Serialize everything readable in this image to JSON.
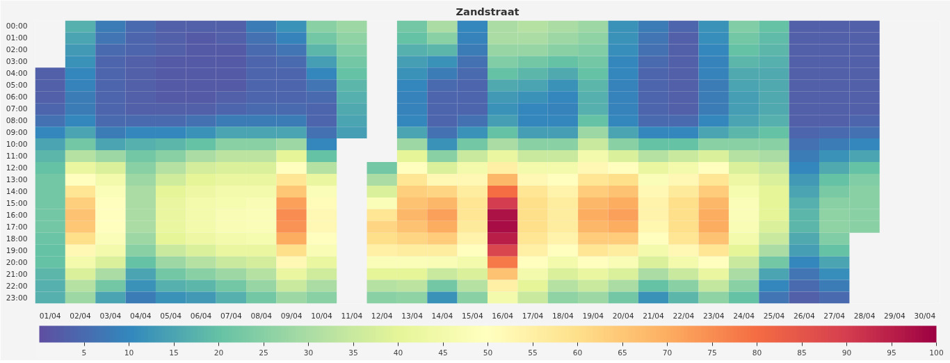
{
  "chart_data": {
    "type": "heatmap",
    "title": "Zandstraat",
    "categories": [
      "01/04",
      "02/04",
      "03/04",
      "04/04",
      "05/04",
      "06/04",
      "07/04",
      "08/04",
      "09/04",
      "10/04",
      "11/04",
      "12/04",
      "13/04",
      "14/04",
      "15/04",
      "16/04",
      "17/04",
      "18/04",
      "19/04",
      "20/04",
      "21/04",
      "22/04",
      "23/04",
      "24/04",
      "25/04",
      "26/04",
      "27/04",
      "28/04",
      "29/04",
      "30/04"
    ],
    "y_categories": [
      "00:00",
      "01:00",
      "02:00",
      "03:00",
      "04:00",
      "05:00",
      "06:00",
      "07:00",
      "08:00",
      "09:00",
      "10:00",
      "11:00",
      "12:00",
      "13:00",
      "14:00",
      "15:00",
      "16:00",
      "17:00",
      "18:00",
      "19:00",
      "20:00",
      "21:00",
      "22:00",
      "23:00"
    ],
    "cells": [
      [
        null,
        17,
        8,
        5,
        3,
        3,
        3,
        8,
        12,
        25,
        28,
        null,
        22,
        30,
        10,
        30,
        32,
        30,
        28,
        12,
        8,
        4,
        12,
        24,
        20,
        3,
        3,
        3,
        null,
        null
      ],
      [
        null,
        15,
        7,
        4,
        3,
        2,
        3,
        6,
        9,
        22,
        26,
        null,
        20,
        25,
        9,
        30,
        30,
        28,
        26,
        12,
        7,
        3,
        11,
        22,
        19,
        3,
        3,
        3,
        null,
        null
      ],
      [
        null,
        13,
        5,
        4,
        3,
        2,
        2,
        5,
        7,
        18,
        24,
        null,
        17,
        18,
        8,
        27,
        27,
        25,
        24,
        11,
        6,
        3,
        10,
        20,
        18,
        3,
        3,
        3,
        null,
        null
      ],
      [
        null,
        12,
        4,
        3,
        2,
        2,
        2,
        4,
        5,
        14,
        22,
        null,
        14,
        12,
        6,
        24,
        22,
        20,
        22,
        10,
        5,
        3,
        9,
        18,
        17,
        3,
        3,
        3,
        null,
        null
      ],
      [
        3,
        10,
        4,
        3,
        2,
        2,
        2,
        4,
        4,
        10,
        20,
        null,
        12,
        8,
        5,
        20,
        18,
        16,
        20,
        10,
        4,
        3,
        9,
        16,
        16,
        3,
        3,
        3,
        null,
        null
      ],
      [
        3,
        9,
        4,
        3,
        2,
        2,
        2,
        4,
        4,
        7,
        18,
        null,
        10,
        5,
        4,
        16,
        15,
        12,
        18,
        9,
        4,
        3,
        8,
        15,
        16,
        3,
        3,
        3,
        null,
        null
      ],
      [
        3,
        8,
        4,
        3,
        2,
        2,
        3,
        4,
        4,
        5,
        17,
        null,
        9,
        4,
        4,
        13,
        12,
        10,
        17,
        9,
        4,
        3,
        8,
        14,
        16,
        3,
        3,
        3,
        null,
        null
      ],
      [
        4,
        8,
        4,
        3,
        3,
        3,
        4,
        5,
        5,
        4,
        16,
        null,
        9,
        4,
        4,
        12,
        10,
        9,
        17,
        9,
        4,
        3,
        8,
        14,
        16,
        3,
        3,
        3,
        null,
        null
      ],
      [
        6,
        10,
        5,
        5,
        5,
        6,
        8,
        8,
        8,
        4,
        15,
        null,
        10,
        4,
        6,
        14,
        10,
        10,
        20,
        10,
        5,
        5,
        10,
        15,
        17,
        3,
        3,
        4,
        null,
        null
      ],
      [
        10,
        15,
        8,
        10,
        10,
        12,
        15,
        15,
        15,
        6,
        14,
        null,
        15,
        6,
        12,
        20,
        14,
        14,
        28,
        15,
        10,
        10,
        15,
        18,
        20,
        4,
        5,
        6,
        null,
        null
      ],
      [
        15,
        22,
        15,
        17,
        18,
        20,
        25,
        25,
        28,
        10,
        null,
        null,
        28,
        12,
        22,
        30,
        25,
        25,
        35,
        25,
        20,
        20,
        25,
        25,
        25,
        6,
        8,
        10,
        null,
        null
      ],
      [
        18,
        32,
        28,
        22,
        25,
        30,
        33,
        33,
        40,
        20,
        null,
        null,
        40,
        25,
        35,
        42,
        35,
        35,
        45,
        38,
        32,
        35,
        38,
        32,
        30,
        8,
        12,
        15,
        null,
        null
      ],
      [
        20,
        42,
        38,
        25,
        32,
        37,
        38,
        38,
        50,
        32,
        null,
        22,
        50,
        38,
        45,
        55,
        45,
        45,
        52,
        50,
        42,
        45,
        50,
        38,
        35,
        10,
        16,
        20,
        null,
        null
      ],
      [
        22,
        50,
        45,
        28,
        36,
        40,
        42,
        42,
        58,
        42,
        null,
        30,
        58,
        52,
        52,
        68,
        52,
        50,
        58,
        60,
        48,
        52,
        58,
        43,
        38,
        13,
        20,
        24,
        null,
        null
      ],
      [
        22,
        58,
        48,
        30,
        40,
        43,
        45,
        45,
        65,
        48,
        null,
        38,
        63,
        62,
        56,
        80,
        58,
        54,
        64,
        66,
        52,
        57,
        64,
        46,
        40,
        15,
        23,
        25,
        null,
        null
      ],
      [
        22,
        63,
        50,
        30,
        42,
        45,
        46,
        47,
        72,
        51,
        null,
        48,
        66,
        68,
        58,
        90,
        60,
        56,
        68,
        70,
        54,
        60,
        68,
        48,
        40,
        17,
        25,
        25,
        null,
        null
      ],
      [
        22,
        66,
        50,
        30,
        42,
        45,
        47,
        48,
        75,
        52,
        null,
        58,
        68,
        72,
        58,
        97,
        60,
        56,
        70,
        72,
        54,
        60,
        70,
        48,
        40,
        18,
        26,
        25,
        null,
        null
      ],
      [
        22,
        65,
        50,
        30,
        42,
        45,
        47,
        48,
        74,
        52,
        null,
        62,
        66,
        70,
        57,
        98,
        60,
        56,
        68,
        70,
        53,
        60,
        70,
        47,
        38,
        18,
        26,
        25,
        null,
        null
      ],
      [
        21,
        60,
        48,
        28,
        40,
        43,
        45,
        46,
        70,
        50,
        null,
        60,
        62,
        64,
        54,
        95,
        58,
        54,
        64,
        64,
        50,
        58,
        66,
        45,
        35,
        16,
        24,
        null,
        null,
        null
      ],
      [
        20,
        52,
        45,
        25,
        35,
        38,
        42,
        42,
        60,
        47,
        null,
        55,
        56,
        56,
        50,
        88,
        55,
        50,
        58,
        56,
        45,
        52,
        58,
        40,
        30,
        14,
        20,
        null,
        null,
        null
      ],
      [
        20,
        45,
        38,
        20,
        28,
        32,
        35,
        37,
        52,
        42,
        null,
        48,
        48,
        47,
        45,
        78,
        50,
        45,
        50,
        47,
        38,
        45,
        50,
        35,
        22,
        10,
        15,
        null,
        null,
        null
      ],
      [
        18,
        38,
        30,
        15,
        22,
        25,
        28,
        32,
        42,
        36,
        null,
        40,
        40,
        35,
        38,
        66,
        45,
        38,
        42,
        38,
        30,
        35,
        42,
        30,
        15,
        7,
        11,
        null,
        null,
        null
      ],
      [
        17,
        32,
        22,
        12,
        17,
        18,
        22,
        27,
        35,
        30,
        null,
        32,
        33,
        22,
        32,
        55,
        40,
        32,
        35,
        30,
        20,
        25,
        34,
        25,
        10,
        5,
        8,
        null,
        null,
        null
      ],
      [
        17,
        28,
        15,
        8,
        12,
        13,
        17,
        22,
        28,
        25,
        null,
        25,
        26,
        12,
        25,
        45,
        35,
        26,
        28,
        22,
        12,
        18,
        26,
        20,
        7,
        3,
        5,
        null,
        null,
        null
      ]
    ],
    "clim": [
      0,
      100
    ],
    "cticks": [
      5,
      10,
      15,
      20,
      25,
      30,
      35,
      40,
      45,
      50,
      55,
      60,
      65,
      70,
      75,
      80,
      85,
      90,
      95,
      100
    ]
  }
}
